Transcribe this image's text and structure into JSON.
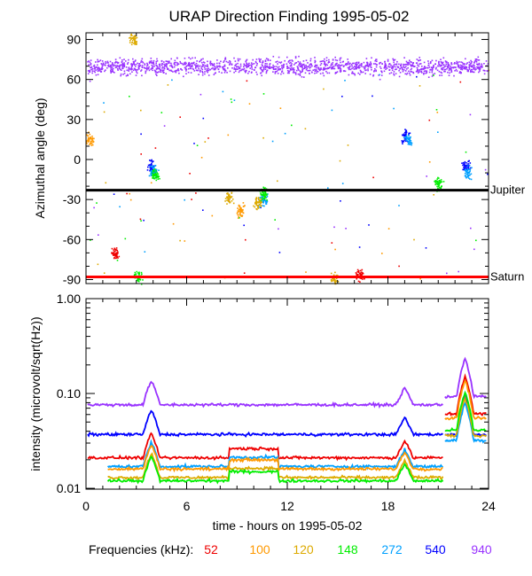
{
  "chart_data": [
    {
      "type": "scatter",
      "title": "URAP Direction Finding  1995-05-02",
      "ylabel": "Azimuthal angle (deg)",
      "xlabel": "",
      "xlim": [
        0,
        24
      ],
      "ylim": [
        -93,
        95
      ],
      "yticks": [
        "90",
        "60",
        "30",
        "0",
        "-30",
        "-60",
        "-90"
      ],
      "ytick_values": [
        90,
        60,
        30,
        0,
        -30,
        -60,
        -90
      ],
      "reference_lines": [
        {
          "name": "Jupiter",
          "value": -23,
          "color": "#000000"
        },
        {
          "name": "Saturn",
          "value": -88,
          "color": "#ff0000"
        }
      ],
      "series": [
        {
          "name": "940 kHz",
          "color": "#9933ff",
          "band": {
            "center": 70,
            "spread": 9
          }
        },
        {
          "name": "540 kHz",
          "color": "#0000ff",
          "clusters": [
            {
              "x": 3.9,
              "y": -5
            },
            {
              "x": 19.0,
              "y": 18
            },
            {
              "x": 22.6,
              "y": -3
            }
          ]
        },
        {
          "name": "272 kHz",
          "color": "#00a0ff",
          "clusters": [
            {
              "x": 4.0,
              "y": -8
            },
            {
              "x": 19.2,
              "y": 15
            },
            {
              "x": 22.7,
              "y": -10
            },
            {
              "x": 10.5,
              "y": -30
            }
          ]
        },
        {
          "name": "148 kHz",
          "color": "#00ee00",
          "clusters": [
            {
              "x": 4.1,
              "y": -12
            },
            {
              "x": 10.6,
              "y": -25
            },
            {
              "x": 21.0,
              "y": -18
            },
            {
              "x": 3.1,
              "y": -88
            }
          ]
        },
        {
          "name": "120 kHz",
          "color": "#ddaa00",
          "clusters": [
            {
              "x": 10.2,
              "y": -32
            },
            {
              "x": 8.5,
              "y": -28
            },
            {
              "x": 2.8,
              "y": 90
            },
            {
              "x": 14.8,
              "y": -88
            }
          ]
        },
        {
          "name": "100 kHz",
          "color": "#ff9900",
          "clusters": [
            {
              "x": 0.2,
              "y": 15
            },
            {
              "x": 9.2,
              "y": -38
            }
          ]
        },
        {
          "name": "52 kHz",
          "color": "#ee0000",
          "clusters": [
            {
              "x": 1.7,
              "y": -70
            },
            {
              "x": 16.3,
              "y": -86
            }
          ]
        }
      ]
    },
    {
      "type": "line",
      "title": "",
      "ylabel": "intensity (microvolt/sqrt(Hz))",
      "xlabel": "time - hours on 1995-05-02",
      "xlim": [
        0,
        24
      ],
      "ylim": [
        0.0098,
        1.0
      ],
      "yscale": "log",
      "xticks": [
        "0",
        "6",
        "12",
        "18",
        "24"
      ],
      "xtick_values": [
        0,
        6,
        12,
        18,
        24
      ],
      "yticks": [
        "1.00",
        "0.10",
        "0.01"
      ],
      "ytick_values": [
        1.0,
        0.1,
        0.01
      ],
      "gap": [
        21.3,
        21.3
      ],
      "series": [
        {
          "name": "940",
          "color": "#9933ff",
          "level_before": 0.076,
          "level_after": 0.093,
          "start": 0.1
        },
        {
          "name": "540",
          "color": "#0000ff",
          "level_before": 0.037,
          "level_after": 0.037,
          "start": 0.1
        },
        {
          "name": "52",
          "color": "#ee0000",
          "level_before": 0.021,
          "level_after": 0.061,
          "start": 0.1
        },
        {
          "name": "272",
          "color": "#00a0ff",
          "level_before": 0.017,
          "level_after": 0.032,
          "start": 1.3
        },
        {
          "name": "100",
          "color": "#ff9900",
          "level_before": 0.016,
          "level_after": 0.055,
          "start": 1.3
        },
        {
          "name": "120",
          "color": "#ddaa00",
          "level_before": 0.013,
          "level_after": 0.036,
          "start": 1.3
        },
        {
          "name": "148",
          "color": "#00ee00",
          "level_before": 0.012,
          "level_after": 0.041,
          "start": 1.3
        }
      ]
    }
  ],
  "legend": {
    "label": "Frequencies (kHz):",
    "items": [
      {
        "text": "52",
        "color": "#ee0000"
      },
      {
        "text": "100",
        "color": "#ff9900"
      },
      {
        "text": "120",
        "color": "#ddaa00"
      },
      {
        "text": "148",
        "color": "#00ee00"
      },
      {
        "text": "272",
        "color": "#00a0ff"
      },
      {
        "text": "540",
        "color": "#0000ff"
      },
      {
        "text": "940",
        "color": "#9933ff"
      }
    ]
  },
  "annotations": {
    "jupiter": "Jupiter",
    "saturn": "Saturn"
  }
}
